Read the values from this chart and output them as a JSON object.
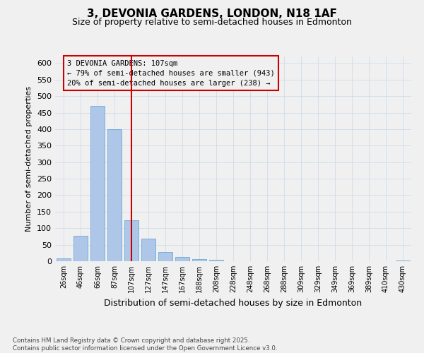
{
  "title": "3, DEVONIA GARDENS, LONDON, N18 1AF",
  "subtitle": "Size of property relative to semi-detached houses in Edmonton",
  "xlabel": "Distribution of semi-detached houses by size in Edmonton",
  "ylabel": "Number of semi-detached properties",
  "bar_labels": [
    "26sqm",
    "46sqm",
    "66sqm",
    "87sqm",
    "107sqm",
    "127sqm",
    "147sqm",
    "167sqm",
    "188sqm",
    "208sqm",
    "228sqm",
    "248sqm",
    "268sqm",
    "288sqm",
    "309sqm",
    "329sqm",
    "349sqm",
    "369sqm",
    "389sqm",
    "410sqm",
    "430sqm"
  ],
  "bar_values": [
    8,
    78,
    470,
    400,
    123,
    68,
    27,
    12,
    7,
    4,
    0,
    1,
    0,
    0,
    0,
    0,
    0,
    0,
    0,
    0,
    3
  ],
  "bar_color": "#aec6e8",
  "bar_edgecolor": "#5a9fd4",
  "vline_index": 4,
  "vline_color": "#cc0000",
  "annotation_title": "3 DEVONIA GARDENS: 107sqm",
  "annotation_line1": "← 79% of semi-detached houses are smaller (943)",
  "annotation_line2": "20% of semi-detached houses are larger (238) →",
  "annotation_box_color": "#cc0000",
  "ylim": [
    0,
    620
  ],
  "yticks": [
    0,
    50,
    100,
    150,
    200,
    250,
    300,
    350,
    400,
    450,
    500,
    550,
    600
  ],
  "footnote": "Contains HM Land Registry data © Crown copyright and database right 2025.\nContains public sector information licensed under the Open Government Licence v3.0.",
  "background_color": "#f0f0f0",
  "grid_color": "#c8d8e8"
}
